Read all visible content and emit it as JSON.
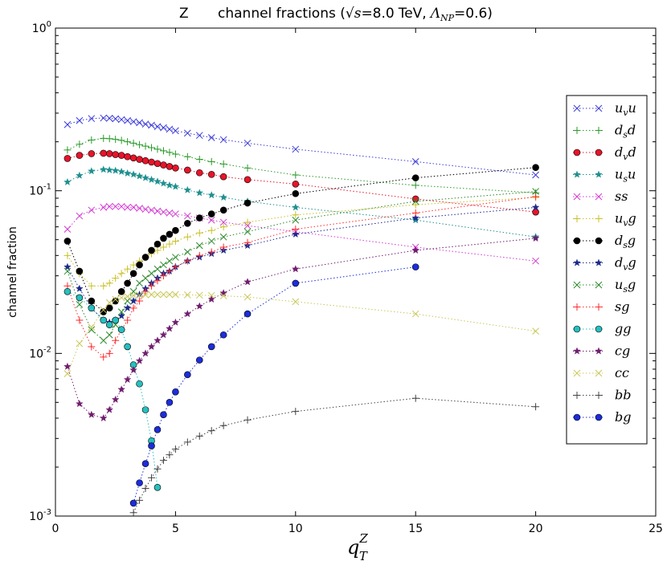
{
  "chart_data": {
    "type": "line",
    "title": {
      "prefix": "Z",
      "label": "channel fractions (",
      "sqrt_symbol": "√s",
      "energy": "=8.0",
      "energy_unit": "TeV,",
      "lambda_symbol": "Λ",
      "lambda_sub": "NP",
      "lambda_value": "=0.6)"
    },
    "xlabel": {
      "base": "q",
      "sub": "T",
      "sup": "Z"
    },
    "ylabel": "channel fraction",
    "xlim": [
      0,
      25
    ],
    "ylim": [
      0.001,
      1
    ],
    "yscale": "log",
    "x_ticks": [
      0,
      5,
      10,
      15,
      20,
      25
    ],
    "x_tick_labels": [
      "0",
      "5",
      "10",
      "15",
      "20",
      "25"
    ],
    "y_ticks": [
      0.001,
      0.01,
      0.1,
      1
    ],
    "y_tick_labels": [
      {
        "base": "10",
        "exp": "-3"
      },
      {
        "base": "10",
        "exp": "-2"
      },
      {
        "base": "10",
        "exp": "-1"
      },
      {
        "base": "10",
        "exp": "0"
      }
    ],
    "legend_position": "right",
    "x": [
      0.5,
      1.0,
      1.5,
      2.0,
      2.25,
      2.5,
      2.75,
      3.0,
      3.25,
      3.5,
      3.75,
      4.0,
      4.25,
      4.5,
      4.75,
      5.0,
      5.5,
      6.0,
      6.5,
      7.0,
      8.0,
      10.0,
      15.0,
      20.0
    ],
    "series": [
      {
        "name": "u_v u",
        "label": "u",
        "sub": "v",
        "suffix": "u",
        "color": "#3a3ad8",
        "marker": "x",
        "values": [
          0.255,
          0.27,
          0.278,
          0.28,
          0.279,
          0.277,
          0.274,
          0.27,
          0.266,
          0.262,
          0.257,
          0.253,
          0.248,
          0.244,
          0.239,
          0.234,
          0.226,
          0.219,
          0.212,
          0.206,
          0.196,
          0.18,
          0.151,
          0.125
        ]
      },
      {
        "name": "d_s d",
        "label": "d",
        "sub": "s",
        "suffix": "d",
        "color": "#2a9a2a",
        "marker": "+",
        "values": [
          0.178,
          0.193,
          0.205,
          0.21,
          0.209,
          0.207,
          0.204,
          0.2,
          0.196,
          0.192,
          0.188,
          0.184,
          0.18,
          0.176,
          0.172,
          0.168,
          0.162,
          0.156,
          0.151,
          0.146,
          0.138,
          0.125,
          0.108,
          0.097
        ]
      },
      {
        "name": "d_v d",
        "label": "d",
        "sub": "v",
        "suffix": "d",
        "color": "#e8142a",
        "marker": "o",
        "values": [
          0.158,
          0.165,
          0.169,
          0.17,
          0.169,
          0.167,
          0.165,
          0.162,
          0.159,
          0.156,
          0.153,
          0.15,
          0.147,
          0.144,
          0.141,
          0.138,
          0.134,
          0.129,
          0.126,
          0.122,
          0.117,
          0.11,
          0.089,
          0.074
        ]
      },
      {
        "name": "u_s u",
        "label": "u",
        "sub": "s",
        "suffix": "u",
        "color": "#1f8f8f",
        "marker": "*",
        "values": [
          0.113,
          0.124,
          0.132,
          0.135,
          0.134,
          0.133,
          0.131,
          0.128,
          0.126,
          0.123,
          0.12,
          0.117,
          0.114,
          0.111,
          0.108,
          0.106,
          0.101,
          0.097,
          0.094,
          0.091,
          0.086,
          0.079,
          0.066,
          0.052
        ]
      },
      {
        "name": "ss",
        "label": "ss",
        "sub": "",
        "suffix": "",
        "color": "#d438d4",
        "marker": "x",
        "values": [
          0.058,
          0.07,
          0.076,
          0.079,
          0.08,
          0.08,
          0.08,
          0.079,
          0.079,
          0.078,
          0.077,
          0.076,
          0.075,
          0.074,
          0.073,
          0.072,
          0.07,
          0.068,
          0.066,
          0.064,
          0.061,
          0.056,
          0.045,
          0.037
        ]
      },
      {
        "name": "u_v g",
        "label": "u",
        "sub": "v",
        "suffix": "g",
        "color": "#c8c02a",
        "marker": "+",
        "values": [
          0.04,
          0.031,
          0.026,
          0.026,
          0.027,
          0.029,
          0.031,
          0.033,
          0.035,
          0.037,
          0.039,
          0.041,
          0.043,
          0.045,
          0.047,
          0.049,
          0.052,
          0.055,
          0.057,
          0.06,
          0.064,
          0.071,
          0.082,
          0.091
        ]
      },
      {
        "name": "d_s g",
        "label": "d",
        "sub": "s",
        "suffix": "g",
        "color": "#000000",
        "marker": "o",
        "values": [
          0.049,
          0.032,
          0.021,
          0.018,
          0.019,
          0.021,
          0.024,
          0.027,
          0.031,
          0.035,
          0.039,
          0.043,
          0.047,
          0.051,
          0.054,
          0.057,
          0.063,
          0.068,
          0.072,
          0.076,
          0.084,
          0.096,
          0.12,
          0.139
        ]
      },
      {
        "name": "d_v g",
        "label": "d",
        "sub": "v",
        "suffix": "g",
        "color": "#1c2a8c",
        "marker": "*",
        "values": [
          0.034,
          0.025,
          0.019,
          0.016,
          0.0155,
          0.016,
          0.017,
          0.019,
          0.021,
          0.023,
          0.025,
          0.027,
          0.029,
          0.031,
          0.032,
          0.034,
          0.037,
          0.039,
          0.041,
          0.043,
          0.046,
          0.054,
          0.068,
          0.079
        ]
      },
      {
        "name": "u_s g",
        "label": "u",
        "sub": "s",
        "suffix": "g",
        "color": "#2a8a2a",
        "marker": "x",
        "values": [
          0.032,
          0.02,
          0.014,
          0.012,
          0.013,
          0.015,
          0.018,
          0.021,
          0.024,
          0.027,
          0.029,
          0.031,
          0.033,
          0.035,
          0.037,
          0.039,
          0.042,
          0.046,
          0.049,
          0.052,
          0.056,
          0.066,
          0.086,
          0.099
        ]
      },
      {
        "name": "sg",
        "label": "sg",
        "sub": "",
        "suffix": "",
        "color": "#ff2a2a",
        "marker": "+",
        "values": [
          0.026,
          0.016,
          0.011,
          0.0095,
          0.01,
          0.012,
          0.014,
          0.016,
          0.019,
          0.021,
          0.024,
          0.026,
          0.028,
          0.03,
          0.032,
          0.034,
          0.037,
          0.04,
          0.042,
          0.045,
          0.048,
          0.058,
          0.073,
          0.092
        ]
      },
      {
        "name": "gg",
        "label": "gg",
        "sub": "",
        "suffix": "",
        "color": "#27bfbf",
        "marker": "o",
        "values": [
          0.024,
          0.022,
          0.019,
          0.016,
          0.015,
          0.016,
          0.014,
          0.011,
          0.0085,
          0.0065,
          0.0045,
          0.0029,
          0.0015,
          null,
          null,
          null,
          null,
          null,
          null,
          null,
          null,
          null,
          null,
          null
        ]
      },
      {
        "name": "cg",
        "label": "cg",
        "sub": "",
        "suffix": "",
        "color": "#701d6e",
        "marker": "*",
        "values": [
          0.0083,
          0.0049,
          0.0042,
          0.004,
          0.0045,
          0.0052,
          0.006,
          0.0069,
          0.0079,
          0.009,
          0.01,
          0.011,
          0.012,
          0.013,
          0.0142,
          0.0155,
          0.0175,
          0.0195,
          0.0215,
          0.0235,
          0.0275,
          0.033,
          0.043,
          0.051
        ]
      },
      {
        "name": "cc",
        "label": "cc",
        "sub": "",
        "suffix": "",
        "color": "#c9c85a",
        "marker": "x",
        "values": [
          0.0075,
          0.0115,
          0.0145,
          0.0185,
          0.0205,
          0.0215,
          0.022,
          0.0224,
          0.0227,
          0.0228,
          0.0229,
          0.023,
          0.023,
          0.023,
          0.023,
          0.023,
          0.0229,
          0.0228,
          0.0227,
          0.0226,
          0.0222,
          0.0208,
          0.0175,
          0.0137
        ]
      },
      {
        "name": "bb",
        "label": "bb",
        "sub": "",
        "suffix": "",
        "color": "#444444",
        "marker": "+",
        "values": [
          null,
          null,
          null,
          null,
          null,
          null,
          null,
          null,
          0.00105,
          0.00125,
          0.00148,
          0.00172,
          0.00195,
          0.0022,
          0.00238,
          0.00258,
          0.00285,
          0.0031,
          0.00335,
          0.0036,
          0.0039,
          0.0044,
          0.0053,
          0.0047
        ]
      },
      {
        "name": "bg",
        "label": "bg",
        "sub": "",
        "suffix": "",
        "color": "#1c2ddb",
        "marker": "o",
        "values": [
          null,
          null,
          null,
          null,
          null,
          null,
          null,
          null,
          0.0012,
          0.0016,
          0.0021,
          0.0027,
          0.0034,
          0.0042,
          0.005,
          0.0058,
          0.0074,
          0.0091,
          0.011,
          0.013,
          0.0175,
          0.027,
          0.034,
          null
        ]
      }
    ]
  }
}
